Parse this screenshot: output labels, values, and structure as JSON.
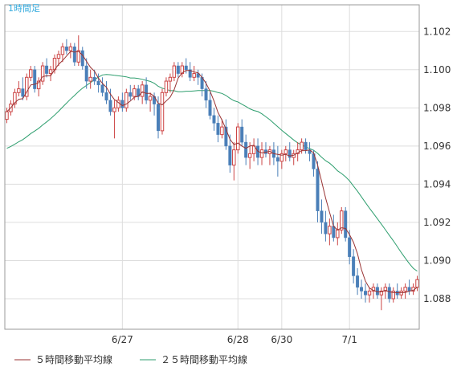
{
  "chart_data": {
    "type": "candlestick",
    "timeframe_label": "1時間足",
    "ylim": [
      1.0864,
      1.1034
    ],
    "yticks": [
      "1.102",
      "1.100",
      "1.098",
      "1.096",
      "1.094",
      "1.092",
      "1.090",
      "1.088"
    ],
    "ytick_values": [
      1.102,
      1.1,
      1.098,
      1.096,
      1.094,
      1.092,
      1.09,
      1.088
    ],
    "x_labels": [
      {
        "label": "6/27",
        "index": 29
      },
      {
        "label": "6/28",
        "index": 58
      },
      {
        "label": "6/30",
        "index": 69
      },
      {
        "label": "7/1",
        "index": 86
      }
    ],
    "grid": true,
    "up_color": "#cc4444",
    "down_color": "#4a7fb8",
    "ma5_color": "#993333",
    "ma25_color": "#2e9e6e",
    "legend": [
      {
        "key": "ma5",
        "label": "５時間移動平均線"
      },
      {
        "key": "ma25",
        "label": "２５時間移動平均線"
      }
    ],
    "candles": [
      [
        1.0974,
        1.098,
        1.0972,
        1.0978
      ],
      [
        1.0978,
        1.0984,
        1.0976,
        1.0982
      ],
      [
        1.0982,
        1.099,
        1.098,
        1.0988
      ],
      [
        1.0988,
        1.0994,
        1.0986,
        1.099
      ],
      [
        1.099,
        1.0996,
        1.0984,
        1.0986
      ],
      [
        1.0986,
        1.0998,
        1.0984,
        1.0996
      ],
      [
        1.0996,
        1.1002,
        1.0994,
        1.1
      ],
      [
        1.1,
        1.1002,
        1.0988,
        1.099
      ],
      [
        1.099,
        1.0996,
        1.0986,
        1.0994
      ],
      [
        1.0994,
        1.1004,
        1.0992,
        1.1002
      ],
      [
        1.1002,
        1.1006,
        1.0996,
        1.0998
      ],
      [
        1.0998,
        1.1002,
        1.0994,
        1.1
      ],
      [
        1.1,
        1.1008,
        1.0998,
        1.1006
      ],
      [
        1.1006,
        1.101,
        1.1002,
        1.1008
      ],
      [
        1.1008,
        1.1014,
        1.1004,
        1.1012
      ],
      [
        1.1012,
        1.1016,
        1.1008,
        1.101
      ],
      [
        1.101,
        1.1014,
        1.1006,
        1.1012
      ],
      [
        1.1012,
        1.1014,
        1.1002,
        1.1004
      ],
      [
        1.1004,
        1.1018,
        1.1002,
        1.101
      ],
      [
        1.101,
        1.1012,
        1.1,
        1.1002
      ],
      [
        1.1002,
        1.1006,
        1.099,
        1.0994
      ],
      [
        1.0994,
        1.1,
        1.099,
        1.0996
      ],
      [
        1.0996,
        1.1,
        1.0992,
        1.0994
      ],
      [
        1.0994,
        1.0998,
        1.0988,
        1.0992
      ],
      [
        1.0992,
        1.0996,
        1.0986,
        1.0988
      ],
      [
        1.0988,
        1.0994,
        1.0982,
        1.0984
      ],
      [
        1.0984,
        1.099,
        1.0976,
        1.0978
      ],
      [
        1.0978,
        1.0984,
        1.0964,
        1.098
      ],
      [
        1.098,
        1.0986,
        1.0978,
        1.0984
      ],
      [
        1.0984,
        1.0988,
        1.0978,
        1.098
      ],
      [
        1.098,
        1.099,
        1.0978,
        1.0988
      ],
      [
        1.0988,
        1.0992,
        1.0984,
        1.0986
      ],
      [
        1.0986,
        1.0992,
        1.0984,
        1.099
      ],
      [
        1.099,
        1.0992,
        1.0984,
        1.0986
      ],
      [
        1.0986,
        1.0994,
        1.0982,
        1.0992
      ],
      [
        1.0992,
        1.0996,
        1.0982,
        1.0984
      ],
      [
        1.0984,
        1.0988,
        1.0978,
        1.0986
      ],
      [
        1.0986,
        1.0988,
        1.0976,
        1.0982
      ],
      [
        1.0982,
        1.0986,
        1.0964,
        1.0968
      ],
      [
        1.0968,
        1.099,
        1.0966,
        1.0988
      ],
      [
        1.0988,
        1.0996,
        1.0986,
        1.0994
      ],
      [
        1.0994,
        1.0998,
        1.0988,
        1.0996
      ],
      [
        1.0996,
        1.1004,
        1.0994,
        1.1002
      ],
      [
        1.1002,
        1.1004,
        1.0996,
        1.0998
      ],
      [
        1.0998,
        1.1004,
        1.0996,
        1.1002
      ],
      [
        1.1002,
        1.1006,
        1.0998,
        1.1
      ],
      [
        1.1,
        1.1004,
        1.0994,
        1.0996
      ],
      [
        1.0996,
        1.1002,
        1.0994,
        1.0998
      ],
      [
        1.0998,
        1.1,
        1.0992,
        1.0996
      ],
      [
        1.0996,
        1.0998,
        1.0986,
        1.099
      ],
      [
        1.099,
        1.0994,
        1.098,
        1.0984
      ],
      [
        1.0984,
        1.0988,
        1.0974,
        1.0976
      ],
      [
        1.0976,
        1.098,
        1.0968,
        1.0972
      ],
      [
        1.0972,
        1.0976,
        1.0962,
        1.0966
      ],
      [
        1.0966,
        1.0974,
        1.0964,
        1.097
      ],
      [
        1.097,
        1.0974,
        1.0958,
        1.096
      ],
      [
        1.096,
        1.0966,
        1.0946,
        1.095
      ],
      [
        1.095,
        1.0962,
        1.0942,
        1.0958
      ],
      [
        1.0958,
        1.0972,
        1.0956,
        1.097
      ],
      [
        1.097,
        1.0974,
        1.096,
        1.0962
      ],
      [
        1.0962,
        1.0966,
        1.095,
        1.0954
      ],
      [
        1.0954,
        1.0962,
        1.0948,
        1.0956
      ],
      [
        1.0956,
        1.0964,
        1.0952,
        1.096
      ],
      [
        1.096,
        1.0964,
        1.095,
        1.0954
      ],
      [
        1.0954,
        1.0962,
        1.095,
        1.0958
      ],
      [
        1.0958,
        1.0962,
        1.0954,
        1.0956
      ],
      [
        1.0956,
        1.096,
        1.095,
        1.0958
      ],
      [
        1.0958,
        1.0962,
        1.095,
        1.0954
      ],
      [
        1.0954,
        1.096,
        1.0944,
        1.0952
      ],
      [
        1.0952,
        1.0958,
        1.0948,
        1.0956
      ],
      [
        1.0956,
        1.096,
        1.0952,
        1.0958
      ],
      [
        1.0958,
        1.0962,
        1.0952,
        1.0954
      ],
      [
        1.0954,
        1.0958,
        1.095,
        1.0956
      ],
      [
        1.0956,
        1.0962,
        1.0952,
        1.0958
      ],
      [
        1.0958,
        1.0964,
        1.0956,
        1.0962
      ],
      [
        1.0962,
        1.0964,
        1.0956,
        1.0958
      ],
      [
        1.0958,
        1.0962,
        1.0952,
        1.0956
      ],
      [
        1.0956,
        1.0958,
        1.0944,
        1.0948
      ],
      [
        1.0948,
        1.0952,
        1.092,
        1.0926
      ],
      [
        1.0926,
        1.0932,
        1.0914,
        1.092
      ],
      [
        1.092,
        1.0926,
        1.091,
        1.0914
      ],
      [
        1.0914,
        1.0922,
        1.0908,
        1.0918
      ],
      [
        1.0918,
        1.0924,
        1.091,
        1.0912
      ],
      [
        1.0912,
        1.092,
        1.0908,
        1.0916
      ],
      [
        1.0916,
        1.0928,
        1.0914,
        1.0926
      ],
      [
        1.0926,
        1.0928,
        1.091,
        1.0912
      ],
      [
        1.0912,
        1.0916,
        1.0898,
        1.0902
      ],
      [
        1.0902,
        1.0906,
        1.0888,
        1.0892
      ],
      [
        1.0892,
        1.0896,
        1.0882,
        1.0886
      ],
      [
        1.0886,
        1.089,
        1.088,
        1.0884
      ],
      [
        1.0884,
        1.0888,
        1.0878,
        1.0882
      ],
      [
        1.0882,
        1.0886,
        1.0878,
        1.0884
      ],
      [
        1.0884,
        1.0888,
        1.088,
        1.0886
      ],
      [
        1.0886,
        1.0888,
        1.088,
        1.0882
      ],
      [
        1.0882,
        1.0886,
        1.0874,
        1.0884
      ],
      [
        1.0884,
        1.0888,
        1.088,
        1.0886
      ],
      [
        1.0886,
        1.0888,
        1.0878,
        1.088
      ],
      [
        1.088,
        1.0886,
        1.0878,
        1.0884
      ],
      [
        1.0884,
        1.0888,
        1.088,
        1.0882
      ],
      [
        1.0882,
        1.0886,
        1.088,
        1.0884
      ],
      [
        1.0884,
        1.0888,
        1.088,
        1.0886
      ],
      [
        1.0886,
        1.089,
        1.0882,
        1.0884
      ],
      [
        1.0884,
        1.0888,
        1.0882,
        1.0886
      ],
      [
        1.0886,
        1.0892,
        1.0884,
        1.089
      ]
    ],
    "ma25_start": 1.0958
  }
}
